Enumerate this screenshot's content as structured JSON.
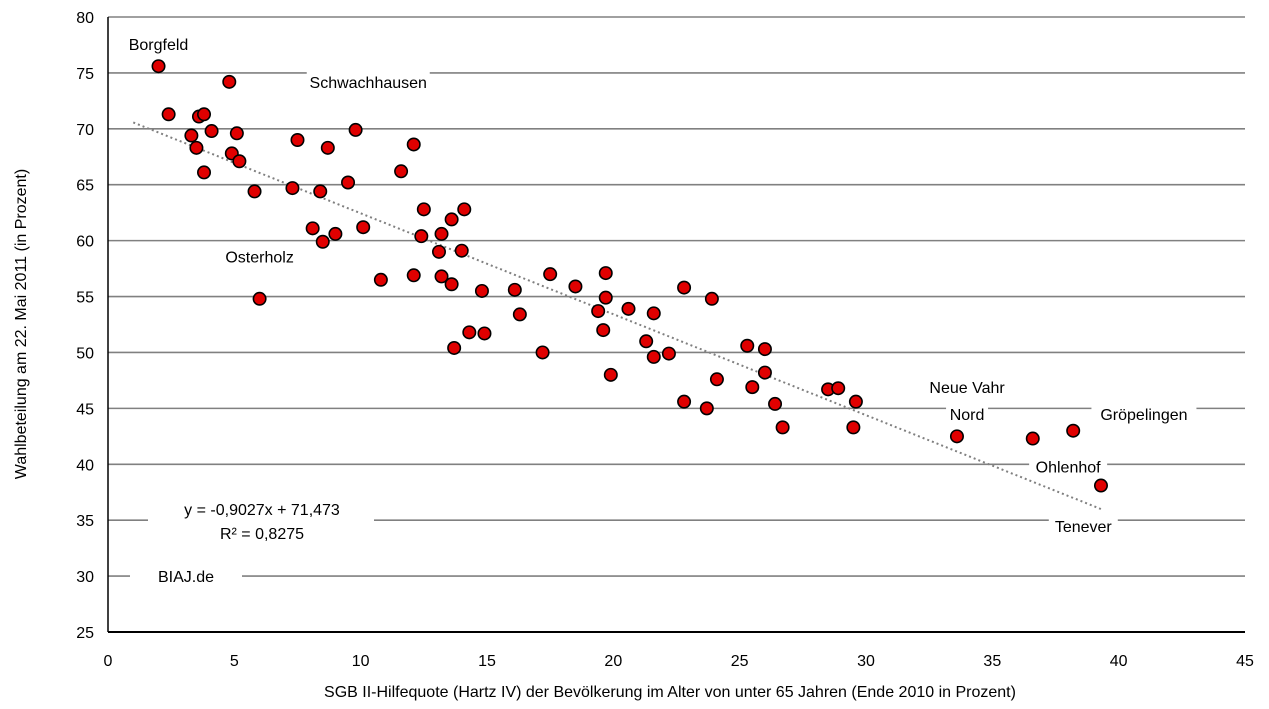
{
  "chart_data": {
    "type": "scatter",
    "xlabel": "SGB II-Hilfequote (Hartz IV) der Bevölkerung im Alter von unter 65 Jahren (Ende 2010 in Prozent)",
    "ylabel": "Wahlbeteilung am 22. Mai 2011 (in Prozent)",
    "xlim": [
      0,
      45
    ],
    "ylim": [
      25,
      80
    ],
    "x_ticks": [
      0,
      5,
      10,
      15,
      20,
      25,
      30,
      35,
      40,
      45
    ],
    "y_ticks": [
      25,
      30,
      35,
      40,
      45,
      50,
      55,
      60,
      65,
      70,
      75,
      80
    ],
    "grid": "horizontal",
    "marker_color": "#e00000",
    "marker_edge": "#000000",
    "trendline": {
      "slope": -0.9027,
      "intercept": 71.473,
      "x_range": [
        1,
        39.3
      ],
      "color": "#808080",
      "style": "dotted",
      "equation": "y = -0,9027x + 71,473",
      "r_squared": "R² = 0,8275"
    },
    "source_label": "BIAJ.de",
    "annotations": [
      {
        "text": "Borgfeld",
        "x": 2.0,
        "y": 77.6
      },
      {
        "text": "Schwachhausen",
        "x": 10.3,
        "y": 74.2
      },
      {
        "text": "Osterholz",
        "x": 6.0,
        "y": 58.6
      },
      {
        "text": "Neue Vahr",
        "x": 34.0,
        "y": 46.9
      },
      {
        "text": "Nord",
        "x": 34.0,
        "y": 44.5
      },
      {
        "text": "Gröpelingen",
        "x": 41.0,
        "y": 44.5
      },
      {
        "text": "Ohlenhof",
        "x": 38.0,
        "y": 39.8
      },
      {
        "text": "Tenever",
        "x": 38.6,
        "y": 34.5
      }
    ],
    "points": [
      {
        "x": 2.0,
        "y": 75.6
      },
      {
        "x": 2.4,
        "y": 71.3
      },
      {
        "x": 3.3,
        "y": 69.4
      },
      {
        "x": 3.5,
        "y": 68.3
      },
      {
        "x": 3.6,
        "y": 71.1
      },
      {
        "x": 3.8,
        "y": 71.3
      },
      {
        "x": 3.8,
        "y": 66.1
      },
      {
        "x": 4.1,
        "y": 69.8
      },
      {
        "x": 4.8,
        "y": 74.2
      },
      {
        "x": 4.9,
        "y": 67.8
      },
      {
        "x": 5.1,
        "y": 69.6
      },
      {
        "x": 5.2,
        "y": 67.1
      },
      {
        "x": 5.8,
        "y": 64.4
      },
      {
        "x": 6.0,
        "y": 54.8
      },
      {
        "x": 7.3,
        "y": 64.7
      },
      {
        "x": 7.5,
        "y": 69.0
      },
      {
        "x": 8.1,
        "y": 61.1
      },
      {
        "x": 8.4,
        "y": 64.4
      },
      {
        "x": 8.5,
        "y": 59.9
      },
      {
        "x": 8.7,
        "y": 68.3
      },
      {
        "x": 9.0,
        "y": 60.6
      },
      {
        "x": 9.5,
        "y": 65.2
      },
      {
        "x": 9.8,
        "y": 69.9
      },
      {
        "x": 10.1,
        "y": 61.2
      },
      {
        "x": 10.8,
        "y": 56.5
      },
      {
        "x": 11.6,
        "y": 66.2
      },
      {
        "x": 12.1,
        "y": 68.6
      },
      {
        "x": 12.1,
        "y": 56.9
      },
      {
        "x": 12.4,
        "y": 60.4
      },
      {
        "x": 12.5,
        "y": 62.8
      },
      {
        "x": 13.1,
        "y": 59.0
      },
      {
        "x": 13.2,
        "y": 60.6
      },
      {
        "x": 13.2,
        "y": 56.8
      },
      {
        "x": 13.6,
        "y": 56.1
      },
      {
        "x": 13.6,
        "y": 61.9
      },
      {
        "x": 13.7,
        "y": 50.4
      },
      {
        "x": 14.0,
        "y": 59.1
      },
      {
        "x": 14.1,
        "y": 62.8
      },
      {
        "x": 14.3,
        "y": 51.8
      },
      {
        "x": 14.8,
        "y": 55.5
      },
      {
        "x": 14.9,
        "y": 51.7
      },
      {
        "x": 16.1,
        "y": 55.6
      },
      {
        "x": 16.3,
        "y": 53.4
      },
      {
        "x": 17.2,
        "y": 50.0
      },
      {
        "x": 17.5,
        "y": 57.0
      },
      {
        "x": 18.5,
        "y": 55.9
      },
      {
        "x": 19.4,
        "y": 53.7
      },
      {
        "x": 19.6,
        "y": 52.0
      },
      {
        "x": 19.7,
        "y": 57.1
      },
      {
        "x": 19.7,
        "y": 54.9
      },
      {
        "x": 19.9,
        "y": 48.0
      },
      {
        "x": 20.6,
        "y": 53.9
      },
      {
        "x": 21.3,
        "y": 51.0
      },
      {
        "x": 21.6,
        "y": 53.5
      },
      {
        "x": 21.6,
        "y": 49.6
      },
      {
        "x": 22.2,
        "y": 49.9
      },
      {
        "x": 22.8,
        "y": 55.8
      },
      {
        "x": 22.8,
        "y": 45.6
      },
      {
        "x": 23.7,
        "y": 45.0
      },
      {
        "x": 23.9,
        "y": 54.8
      },
      {
        "x": 24.1,
        "y": 47.6
      },
      {
        "x": 25.3,
        "y": 50.6
      },
      {
        "x": 25.5,
        "y": 46.9
      },
      {
        "x": 26.0,
        "y": 50.3
      },
      {
        "x": 26.0,
        "y": 48.2
      },
      {
        "x": 26.4,
        "y": 45.4
      },
      {
        "x": 26.7,
        "y": 43.3
      },
      {
        "x": 28.5,
        "y": 46.7
      },
      {
        "x": 28.9,
        "y": 46.8
      },
      {
        "x": 29.5,
        "y": 43.3
      },
      {
        "x": 29.6,
        "y": 45.6
      },
      {
        "x": 33.6,
        "y": 42.5
      },
      {
        "x": 36.6,
        "y": 42.3
      },
      {
        "x": 38.2,
        "y": 43.0
      },
      {
        "x": 39.3,
        "y": 38.1
      }
    ]
  }
}
